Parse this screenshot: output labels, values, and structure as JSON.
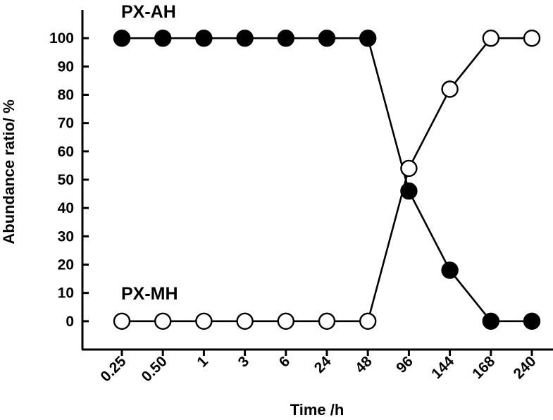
{
  "chart_data": {
    "type": "line",
    "categories": [
      "0.25",
      "0.50",
      "1",
      "3",
      "6",
      "24",
      "48",
      "96",
      "144",
      "168",
      "240"
    ],
    "series": [
      {
        "name": "PX-AH",
        "marker": "filled-circle",
        "color": "#000000",
        "values": [
          100,
          100,
          100,
          100,
          100,
          100,
          100,
          46,
          18,
          0,
          0
        ]
      },
      {
        "name": "PX-MH",
        "marker": "open-circle",
        "color": "#000000",
        "values": [
          0,
          0,
          0,
          0,
          0,
          0,
          0,
          54,
          82,
          100,
          100
        ]
      }
    ],
    "xlabel": "Time /h",
    "ylabel": "Abundance ratio/ %",
    "ylim": [
      -10,
      110
    ],
    "yticks": [
      0,
      10,
      20,
      30,
      40,
      50,
      60,
      70,
      80,
      90,
      100
    ],
    "grid": false,
    "legend": "inline labels"
  }
}
